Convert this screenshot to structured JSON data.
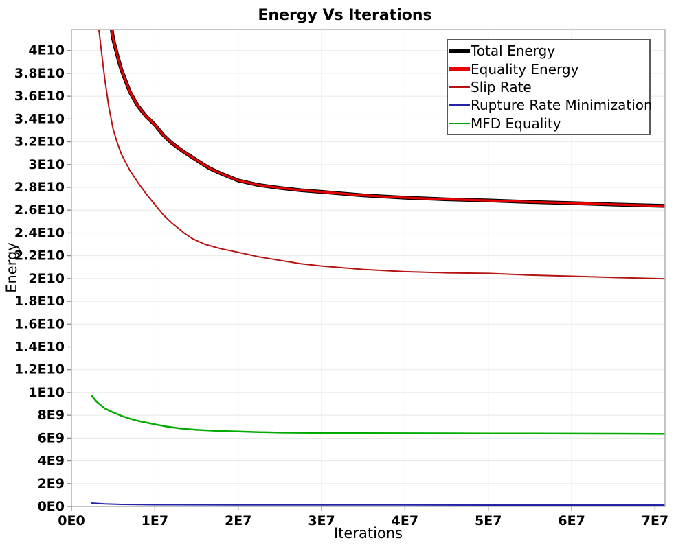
{
  "chart": {
    "title": "Energy Vs Iterations",
    "x_axis": {
      "label": "Iterations",
      "tick_labels": [
        "0E0",
        "1E7",
        "2E7",
        "3E7",
        "4E7",
        "5E7",
        "6E7",
        "7E7"
      ],
      "tick_values_e7": [
        0,
        1,
        2,
        3,
        4,
        5,
        6,
        7
      ]
    },
    "y_axis": {
      "label": "Energy",
      "tick_labels": [
        "0E0",
        "2E9",
        "4E9",
        "6E9",
        "8E9",
        "1E10",
        "1.2E10",
        "1.4E10",
        "1.6E10",
        "1.8E10",
        "2E10",
        "2.2E10",
        "2.4E10",
        "2.6E10",
        "2.8E10",
        "3E10",
        "3.2E10",
        "3.4E10",
        "3.6E10",
        "3.8E10",
        "4E10"
      ],
      "tick_values_e9": [
        0,
        2,
        4,
        6,
        8,
        10,
        12,
        14,
        16,
        18,
        20,
        22,
        24,
        26,
        28,
        30,
        32,
        34,
        36,
        38,
        40
      ]
    }
  },
  "legend": {
    "position": "top-right",
    "entries": [
      {
        "label": "Total Energy",
        "color": "#000000",
        "thickness": 5
      },
      {
        "label": "Equality Energy",
        "color": "#e60000",
        "thickness": 5
      },
      {
        "label": "Slip Rate",
        "color": "#b51212",
        "thickness": 2
      },
      {
        "label": "Rupture Rate Minimization",
        "color": "#2323a7",
        "thickness": 2
      },
      {
        "label": "MFD Equality",
        "color": "#00ab00",
        "thickness": 2.5
      }
    ]
  },
  "colors": {
    "background": "#ffffff",
    "plot_border": "#b0b0b0",
    "gridline": "#e8e8e8",
    "tick_mark": "#8a8a8a",
    "text": "#000000"
  },
  "chart_data": {
    "type": "line",
    "title": "Energy Vs Iterations",
    "xlabel": "Iterations",
    "ylabel": "Energy",
    "xlim": [
      0,
      71200000
    ],
    "ylim": [
      0,
      41850000000
    ],
    "grid": true,
    "legend_position": "top-right",
    "x_scale": 10000000,
    "y_scale": 1000000000,
    "note": "points are [x/1e7, y/1e9]; curves above ylim are clipped at plot top",
    "series": [
      {
        "name": "Total Energy",
        "color": "#000000",
        "width": 5.4,
        "points": [
          [
            0.44,
            44.0
          ],
          [
            0.5,
            41.0
          ],
          [
            0.55,
            39.6
          ],
          [
            0.6,
            38.3
          ],
          [
            0.7,
            36.4
          ],
          [
            0.8,
            35.1
          ],
          [
            0.9,
            34.2
          ],
          [
            1.0,
            33.5
          ],
          [
            1.1,
            32.6
          ],
          [
            1.2,
            31.9
          ],
          [
            1.35,
            31.1
          ],
          [
            1.5,
            30.4
          ],
          [
            1.65,
            29.7
          ],
          [
            1.8,
            29.2
          ],
          [
            2.0,
            28.6
          ],
          [
            2.25,
            28.2
          ],
          [
            2.5,
            27.95
          ],
          [
            2.75,
            27.75
          ],
          [
            3.0,
            27.6
          ],
          [
            3.25,
            27.45
          ],
          [
            3.5,
            27.3
          ],
          [
            3.75,
            27.2
          ],
          [
            4.0,
            27.1
          ],
          [
            4.5,
            26.95
          ],
          [
            5.0,
            26.85
          ],
          [
            5.5,
            26.72
          ],
          [
            6.0,
            26.62
          ],
          [
            6.5,
            26.5
          ],
          [
            7.0,
            26.4
          ],
          [
            7.12,
            26.38
          ]
        ]
      },
      {
        "name": "Equality Energy",
        "color": "#e60000",
        "width": 3.2,
        "points": [
          [
            0.44,
            44.0
          ],
          [
            0.5,
            41.0
          ],
          [
            0.55,
            39.6
          ],
          [
            0.6,
            38.3
          ],
          [
            0.7,
            36.4
          ],
          [
            0.8,
            35.1
          ],
          [
            0.9,
            34.2
          ],
          [
            1.0,
            33.5
          ],
          [
            1.1,
            32.6
          ],
          [
            1.2,
            31.9
          ],
          [
            1.35,
            31.1
          ],
          [
            1.5,
            30.4
          ],
          [
            1.65,
            29.7
          ],
          [
            1.8,
            29.2
          ],
          [
            2.0,
            28.6
          ],
          [
            2.25,
            28.2
          ],
          [
            2.5,
            27.95
          ],
          [
            2.75,
            27.75
          ],
          [
            3.0,
            27.6
          ],
          [
            3.25,
            27.45
          ],
          [
            3.5,
            27.3
          ],
          [
            3.75,
            27.2
          ],
          [
            4.0,
            27.1
          ],
          [
            4.5,
            26.95
          ],
          [
            5.0,
            26.85
          ],
          [
            5.5,
            26.72
          ],
          [
            6.0,
            26.62
          ],
          [
            6.5,
            26.5
          ],
          [
            7.0,
            26.4
          ],
          [
            7.12,
            26.38
          ]
        ]
      },
      {
        "name": "Slip Rate",
        "color": "#b51212",
        "width": 2,
        "points": [
          [
            0.28,
            45.0
          ],
          [
            0.35,
            40.5
          ],
          [
            0.4,
            37.5
          ],
          [
            0.45,
            35.0
          ],
          [
            0.5,
            33.1
          ],
          [
            0.55,
            31.9
          ],
          [
            0.6,
            30.9
          ],
          [
            0.7,
            29.5
          ],
          [
            0.8,
            28.4
          ],
          [
            0.9,
            27.4
          ],
          [
            1.0,
            26.5
          ],
          [
            1.1,
            25.6
          ],
          [
            1.2,
            24.9
          ],
          [
            1.35,
            24.0
          ],
          [
            1.45,
            23.5
          ],
          [
            1.6,
            23.0
          ],
          [
            1.8,
            22.6
          ],
          [
            2.0,
            22.3
          ],
          [
            2.25,
            21.9
          ],
          [
            2.5,
            21.6
          ],
          [
            2.75,
            21.3
          ],
          [
            3.0,
            21.1
          ],
          [
            3.25,
            20.95
          ],
          [
            3.5,
            20.8
          ],
          [
            3.75,
            20.7
          ],
          [
            4.0,
            20.6
          ],
          [
            4.5,
            20.5
          ],
          [
            5.0,
            20.45
          ],
          [
            5.5,
            20.3
          ],
          [
            6.0,
            20.2
          ],
          [
            6.5,
            20.1
          ],
          [
            7.0,
            20.0
          ],
          [
            7.12,
            19.98
          ]
        ]
      },
      {
        "name": "Rupture Rate Minimization",
        "color": "#2323a7",
        "width": 2,
        "points": [
          [
            0.24,
            0.3
          ],
          [
            0.4,
            0.22
          ],
          [
            0.6,
            0.18
          ],
          [
            1.0,
            0.15
          ],
          [
            2.0,
            0.14
          ],
          [
            3.0,
            0.13
          ],
          [
            4.0,
            0.13
          ],
          [
            5.0,
            0.12
          ],
          [
            6.0,
            0.12
          ],
          [
            7.12,
            0.12
          ]
        ]
      },
      {
        "name": "MFD Equality",
        "color": "#00ab00",
        "width": 2.5,
        "points": [
          [
            0.24,
            9.75
          ],
          [
            0.3,
            9.2
          ],
          [
            0.4,
            8.6
          ],
          [
            0.5,
            8.25
          ],
          [
            0.6,
            7.95
          ],
          [
            0.7,
            7.7
          ],
          [
            0.8,
            7.5
          ],
          [
            0.9,
            7.35
          ],
          [
            1.0,
            7.2
          ],
          [
            1.15,
            7.0
          ],
          [
            1.3,
            6.85
          ],
          [
            1.5,
            6.72
          ],
          [
            1.75,
            6.63
          ],
          [
            2.0,
            6.58
          ],
          [
            2.25,
            6.52
          ],
          [
            2.5,
            6.48
          ],
          [
            3.0,
            6.45
          ],
          [
            3.5,
            6.43
          ],
          [
            4.0,
            6.42
          ],
          [
            4.5,
            6.41
          ],
          [
            5.0,
            6.4
          ],
          [
            5.5,
            6.4
          ],
          [
            6.0,
            6.39
          ],
          [
            6.5,
            6.38
          ],
          [
            7.0,
            6.37
          ],
          [
            7.12,
            6.37
          ]
        ]
      }
    ]
  }
}
